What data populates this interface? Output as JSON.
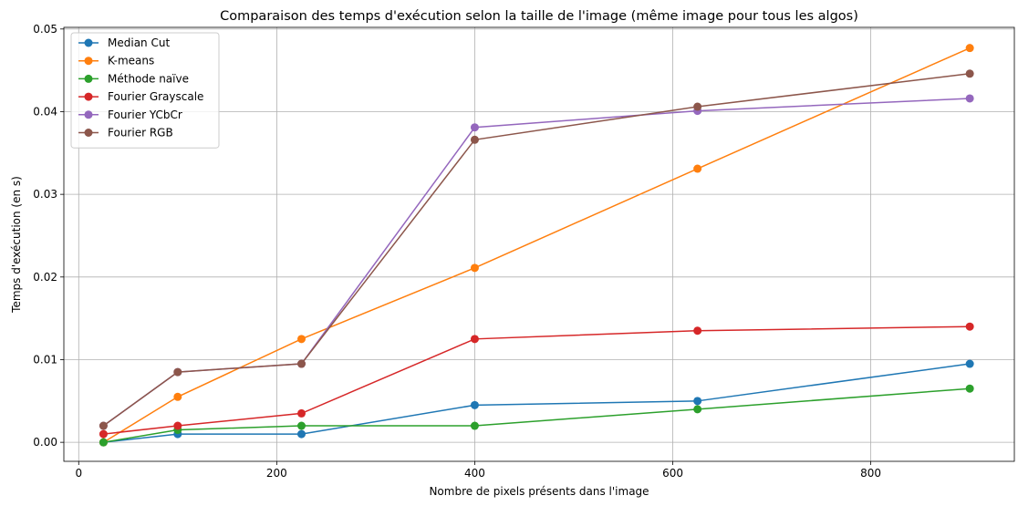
{
  "chart_data": {
    "type": "line",
    "title": "Comparaison des temps d'exécution selon la taille de l'image (même image pour tous les algos)",
    "xlabel": "Nombre de pixels présents dans l'image",
    "ylabel": "Temps d'exécution (en s)",
    "x": [
      25,
      100,
      225,
      400,
      625,
      900
    ],
    "xlim": [
      -15,
      945
    ],
    "ylim": [
      -0.0023,
      0.0502
    ],
    "xticks": [
      0,
      200,
      400,
      600,
      800
    ],
    "xtick_labels": [
      "0",
      "200",
      "400",
      "600",
      "800"
    ],
    "yticks": [
      0.0,
      0.01,
      0.02,
      0.03,
      0.04,
      0.05
    ],
    "ytick_labels": [
      "0.00",
      "0.01",
      "0.02",
      "0.03",
      "0.04",
      "0.05"
    ],
    "grid": true,
    "legend_position": "top-left",
    "series": [
      {
        "name": "Median Cut",
        "color": "#1f77b4",
        "values": [
          0.0,
          0.001,
          0.001,
          0.0045,
          0.005,
          0.0095
        ]
      },
      {
        "name": "K-means",
        "color": "#ff7f0e",
        "values": [
          0.0,
          0.0055,
          0.0125,
          0.0211,
          0.0331,
          0.0477
        ]
      },
      {
        "name": "Méthode naïve",
        "color": "#2ca02c",
        "values": [
          0.0,
          0.0015,
          0.002,
          0.002,
          0.004,
          0.0065
        ]
      },
      {
        "name": "Fourier Grayscale",
        "color": "#d62728",
        "values": [
          0.001,
          0.002,
          0.0035,
          0.0125,
          0.0135,
          0.014
        ]
      },
      {
        "name": "Fourier YCbCr",
        "color": "#9467bd",
        "values": [
          0.002,
          0.0085,
          0.0095,
          0.0381,
          0.0401,
          0.0416
        ]
      },
      {
        "name": "Fourier RGB",
        "color": "#8c564b",
        "values": [
          0.002,
          0.0085,
          0.0095,
          0.0366,
          0.0406,
          0.0446
        ]
      }
    ]
  }
}
